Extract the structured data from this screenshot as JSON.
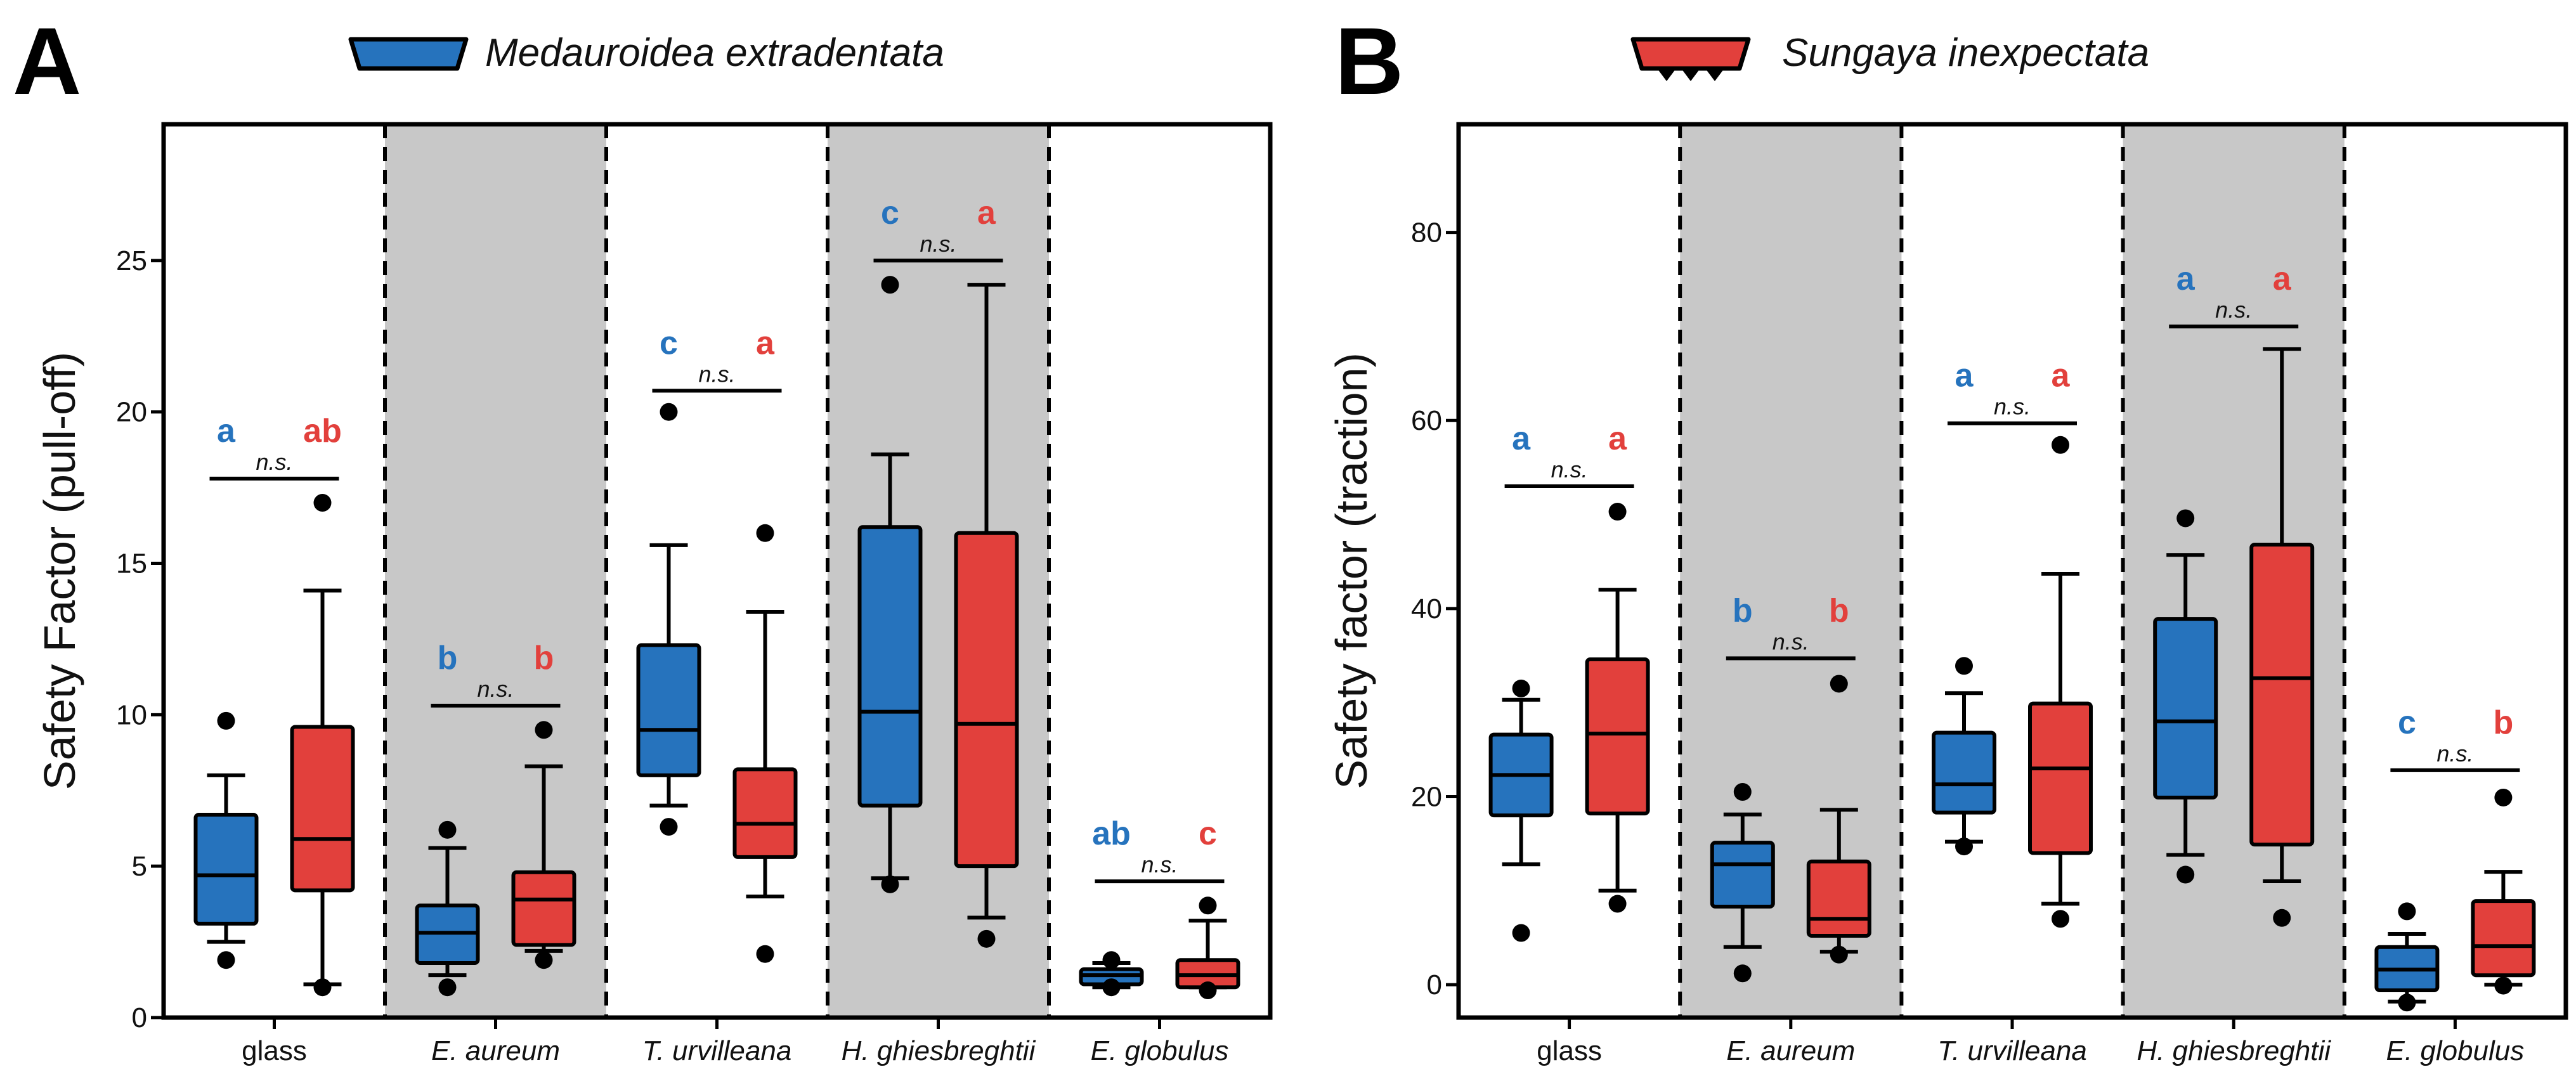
{
  "colors": {
    "blue": "#2673BD",
    "red": "#E2403C",
    "shade": "#C8C8C8",
    "black": "#000000"
  },
  "chart_data": [
    {
      "type": "box",
      "panel_label": "A",
      "legend": {
        "label": "Medauroidea extradentata",
        "color": "#2673BD",
        "icon": "smooth-pad-icon"
      },
      "ylabel": "Safety Factor (pull-off)",
      "xlabel": "",
      "ylim": [
        0,
        29.5
      ],
      "yticks": [
        0,
        5,
        10,
        15,
        20,
        25
      ],
      "yticklabels": [
        "0",
        "5",
        "10",
        "15",
        "20",
        "25"
      ],
      "categories": [
        "glass",
        "E. aureum",
        "T. urvilleana",
        "H. ghiesbreghtii",
        "E. globulus"
      ],
      "category_italic": [
        false,
        true,
        true,
        true,
        true
      ],
      "shaded": [
        false,
        true,
        false,
        true,
        false
      ],
      "ns_label": "n.s.",
      "groups": [
        {
          "ns_y": 17.8,
          "blue": {
            "sig": "a",
            "q1": 3.1,
            "median": 4.7,
            "q3": 6.7,
            "wlo": 2.5,
            "whi": 8.0,
            "outliers": [
              9.8,
              1.9
            ]
          },
          "red": {
            "sig": "ab",
            "q1": 4.2,
            "median": 5.9,
            "q3": 9.6,
            "wlo": 1.1,
            "whi": 14.1,
            "outliers": [
              17.0,
              1.0
            ]
          }
        },
        {
          "ns_y": 10.3,
          "blue": {
            "sig": "b",
            "q1": 1.8,
            "median": 2.8,
            "q3": 3.7,
            "wlo": 1.4,
            "whi": 5.6,
            "outliers": [
              6.2,
              1.0
            ]
          },
          "red": {
            "sig": "b",
            "q1": 2.4,
            "median": 3.9,
            "q3": 4.8,
            "wlo": 2.2,
            "whi": 8.3,
            "outliers": [
              9.5,
              1.9
            ]
          }
        },
        {
          "ns_y": 20.7,
          "blue": {
            "sig": "c",
            "q1": 8.0,
            "median": 9.5,
            "q3": 12.3,
            "wlo": 7.0,
            "whi": 15.6,
            "outliers": [
              20.0,
              6.3
            ]
          },
          "red": {
            "sig": "a",
            "q1": 5.3,
            "median": 6.4,
            "q3": 8.2,
            "wlo": 4.0,
            "whi": 13.4,
            "outliers": [
              16.0,
              2.1
            ]
          }
        },
        {
          "ns_y": 25.0,
          "blue": {
            "sig": "c",
            "q1": 7.0,
            "median": 10.1,
            "q3": 16.2,
            "wlo": 4.6,
            "whi": 18.6,
            "outliers": [
              24.2,
              4.4
            ]
          },
          "red": {
            "sig": "a",
            "q1": 5.0,
            "median": 9.7,
            "q3": 16.0,
            "wlo": 3.3,
            "whi": 24.2,
            "outliers": [
              2.6
            ]
          }
        },
        {
          "ns_y": 4.5,
          "blue": {
            "sig": "ab",
            "q1": 1.1,
            "median": 1.4,
            "q3": 1.6,
            "wlo": 1.0,
            "whi": 1.8,
            "outliers": [
              1.9,
              1.0
            ]
          },
          "red": {
            "sig": "c",
            "q1": 1.0,
            "median": 1.4,
            "q3": 1.9,
            "wlo": 1.0,
            "whi": 3.2,
            "outliers": [
              3.7,
              0.9
            ]
          }
        }
      ]
    },
    {
      "type": "box",
      "panel_label": "B",
      "legend": {
        "label": "Sungaya inexpectata",
        "color": "#E2403C",
        "icon": "spiked-pad-icon"
      },
      "ylabel": "Safety factor (traction)",
      "xlabel": "",
      "ylim": [
        -3.5,
        91.5
      ],
      "yticks": [
        0,
        20,
        40,
        60,
        80
      ],
      "yticklabels": [
        "0",
        "20",
        "40",
        "60",
        "80"
      ],
      "categories": [
        "glass",
        "E. aureum",
        "T. urvilleana",
        "H. ghiesbreghtii",
        "E. globulus"
      ],
      "category_italic": [
        false,
        true,
        true,
        true,
        true
      ],
      "shaded": [
        false,
        true,
        false,
        true,
        false
      ],
      "ns_label": "n.s.",
      "groups": [
        {
          "ns_y": 53.0,
          "blue": {
            "sig": "a",
            "q1": 18.0,
            "median": 22.3,
            "q3": 26.6,
            "wlo": 12.8,
            "whi": 30.3,
            "outliers": [
              31.5,
              5.5
            ]
          },
          "red": {
            "sig": "a",
            "q1": 18.2,
            "median": 26.7,
            "q3": 34.6,
            "wlo": 10.0,
            "whi": 42.0,
            "outliers": [
              50.3,
              8.6
            ]
          }
        },
        {
          "ns_y": 34.7,
          "blue": {
            "sig": "b",
            "q1": 8.3,
            "median": 12.8,
            "q3": 15.1,
            "wlo": 4.0,
            "whi": 18.1,
            "outliers": [
              20.5,
              1.2
            ]
          },
          "red": {
            "sig": "b",
            "q1": 5.2,
            "median": 7.0,
            "q3": 13.1,
            "wlo": 3.5,
            "whi": 18.6,
            "outliers": [
              32.0,
              3.2
            ]
          }
        },
        {
          "ns_y": 59.7,
          "blue": {
            "sig": "a",
            "q1": 18.3,
            "median": 21.3,
            "q3": 26.8,
            "wlo": 15.2,
            "whi": 31.0,
            "outliers": [
              33.9,
              14.7
            ]
          },
          "red": {
            "sig": "a",
            "q1": 14.0,
            "median": 23.0,
            "q3": 29.9,
            "wlo": 8.6,
            "whi": 43.7,
            "outliers": [
              57.4,
              7.0
            ]
          }
        },
        {
          "ns_y": 70.0,
          "blue": {
            "sig": "a",
            "q1": 19.9,
            "median": 28.0,
            "q3": 38.9,
            "wlo": 13.8,
            "whi": 45.7,
            "outliers": [
              49.6,
              11.7
            ]
          },
          "red": {
            "sig": "a",
            "q1": 14.9,
            "median": 32.6,
            "q3": 46.8,
            "wlo": 11.0,
            "whi": 67.6,
            "outliers": [
              7.1
            ]
          }
        },
        {
          "ns_y": 22.8,
          "blue": {
            "sig": "c",
            "q1": -0.6,
            "median": 1.6,
            "q3": 4.0,
            "wlo": -1.8,
            "whi": 5.4,
            "outliers": [
              7.8,
              -1.9
            ]
          },
          "red": {
            "sig": "b",
            "q1": 1.0,
            "median": 4.1,
            "q3": 8.9,
            "wlo": 0.0,
            "whi": 12.0,
            "outliers": [
              19.9,
              -0.1
            ]
          }
        }
      ]
    }
  ]
}
